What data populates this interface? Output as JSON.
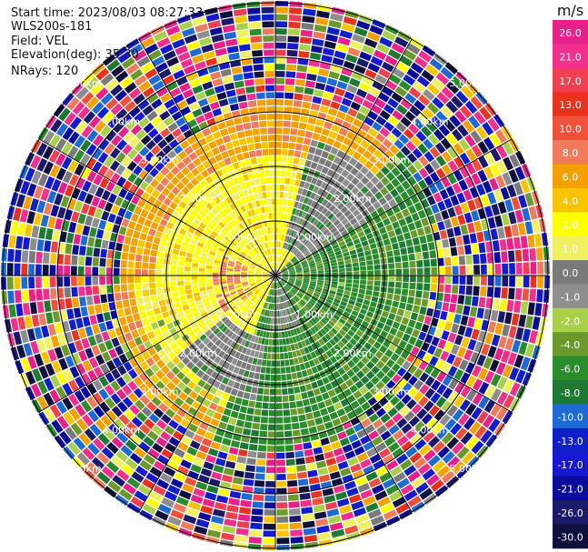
{
  "header": {
    "start_time": "Start time: 2023/08/03 08:27:33",
    "instrument": "WLS200s-181",
    "field": "Field: VEL",
    "elevation": "Elevation(deg): 35.30",
    "nrays": "NRays: 120"
  },
  "colorbar": {
    "unit": "m/s",
    "levels": [
      26.0,
      21.0,
      17.0,
      13.0,
      10.0,
      8.0,
      6.0,
      4.0,
      2.0,
      1.0,
      0.0,
      -1.0,
      -2.0,
      -4.0,
      -6.0,
      -8.0,
      -10.0,
      -13.0,
      -17.0,
      -21.0,
      -26.0,
      -30.0
    ],
    "labels": [
      "26.0",
      "21.0",
      "17.0",
      "13.0",
      "10.0",
      "8.0",
      "6.0",
      "4.0",
      "2.0",
      "1.0",
      "0.0",
      "-1.0",
      "-2.0",
      "-4.0",
      "-6.0",
      "-8.0",
      "-10.0",
      "-13.0",
      "-17.0",
      "-21.0",
      "-26.0",
      "-30.0"
    ],
    "colors": [
      "#e8218a",
      "#f0308c",
      "#f04050",
      "#e8321e",
      "#f0503a",
      "#f07a5a",
      "#f4a000",
      "#f8c400",
      "#ffff00",
      "#f0f060",
      "#7a7a7a",
      "#8e8e8e",
      "#a8d048",
      "#6c9a2a",
      "#2a8c2a",
      "#1e7a32",
      "#1e6ad4",
      "#1020c8",
      "#1818d0",
      "#0c0c9c",
      "#1a1a6a",
      "#10103c"
    ]
  },
  "chart_data": {
    "type": "heatmap",
    "projection": "PPI (plan position indicator)",
    "field": "VEL",
    "units": "m/s",
    "n_rays": 120,
    "range_rings_km": [
      1.0,
      2.0,
      3.0,
      4.0,
      5.0
    ],
    "range_ring_labels": [
      "1.00km",
      "2.00km",
      "3.00km",
      "4.00km",
      "5.00km"
    ],
    "radial_spokes_deg": [
      0,
      30,
      60,
      90,
      120,
      150,
      180,
      210,
      240,
      270,
      300,
      330
    ],
    "pattern": "positive velocities (yellow/orange) west and north, negative (green) east and south, gray near-zero band, noisy multicolor outer ranges",
    "clean_range_km": {
      "north": 3.0,
      "west": 3.2,
      "east": 3.0,
      "south": 3.0
    }
  }
}
